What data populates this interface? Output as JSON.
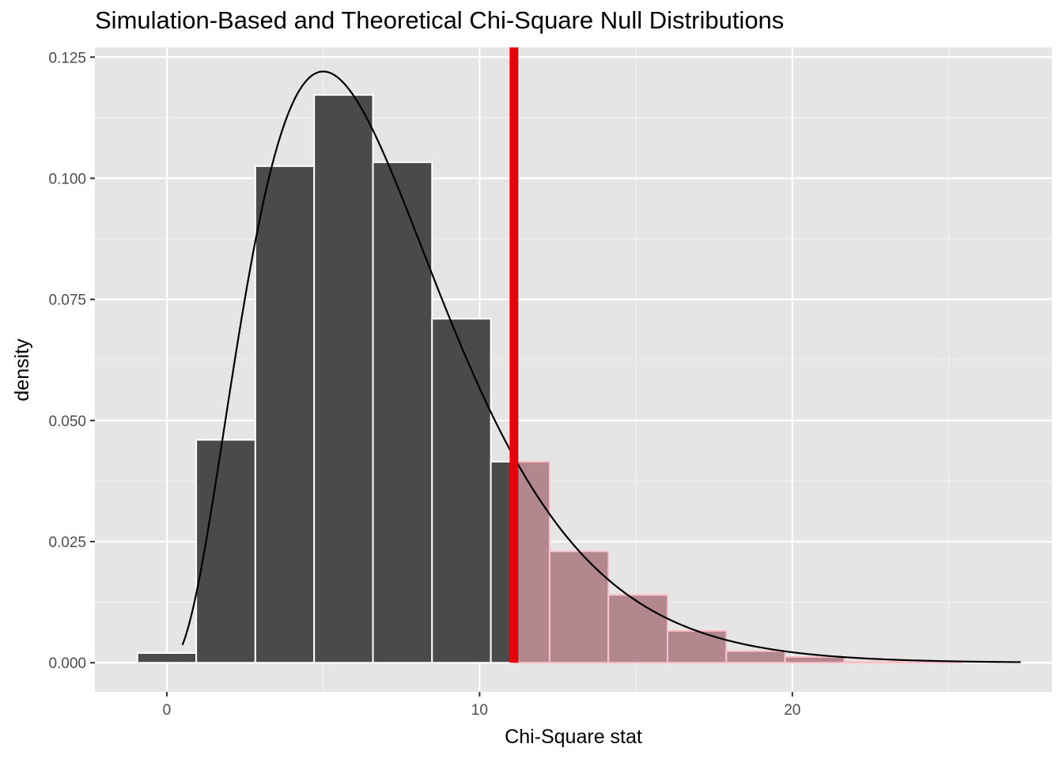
{
  "chart_data": {
    "type": "bar",
    "title": "Simulation-Based and Theoretical Chi-Square Null Distributions",
    "xlabel": "Chi-Square stat",
    "ylabel": "density",
    "xlim": [
      -2.3,
      28.3
    ],
    "ylim": [
      -0.006,
      0.127
    ],
    "x_ticks": [
      {
        "value": 0,
        "label": "0"
      },
      {
        "value": 10,
        "label": "10"
      },
      {
        "value": 20,
        "label": "20"
      }
    ],
    "y_ticks": [
      {
        "value": 0,
        "label": "0.000"
      },
      {
        "value": 0.025,
        "label": "0.025"
      },
      {
        "value": 0.05,
        "label": "0.050"
      },
      {
        "value": 0.075,
        "label": "0.075"
      },
      {
        "value": 0.1,
        "label": "0.100"
      },
      {
        "value": 0.125,
        "label": "0.125"
      }
    ],
    "grid": true,
    "histogram": {
      "name": "simulated",
      "bins": [
        {
          "x0": -0.94,
          "x1": 0.94,
          "density": 0.002
        },
        {
          "x0": 0.94,
          "x1": 2.83,
          "density": 0.046
        },
        {
          "x0": 2.83,
          "x1": 4.71,
          "density": 0.1025
        },
        {
          "x0": 4.71,
          "x1": 6.59,
          "density": 0.1172
        },
        {
          "x0": 6.59,
          "x1": 8.48,
          "density": 0.1033
        },
        {
          "x0": 8.48,
          "x1": 10.36,
          "density": 0.071
        },
        {
          "x0": 10.36,
          "x1": 12.24,
          "density": 0.0415
        },
        {
          "x0": 12.24,
          "x1": 14.12,
          "density": 0.023
        },
        {
          "x0": 14.12,
          "x1": 16.01,
          "density": 0.014
        },
        {
          "x0": 16.01,
          "x1": 17.89,
          "density": 0.0066
        },
        {
          "x0": 17.89,
          "x1": 19.77,
          "density": 0.0024
        },
        {
          "x0": 19.77,
          "x1": 21.66,
          "density": 0.0012
        },
        {
          "x0": 21.66,
          "x1": 23.54,
          "density": 0.0002
        },
        {
          "x0": 23.54,
          "x1": 25.42,
          "density": 0.0001
        }
      ],
      "fill": "#4a4a4a",
      "shaded_fill": "#b3878e",
      "edge": "#ffffff",
      "shaded_edge": "#ffc0cb"
    },
    "theoretical_curve": {
      "name": "theoretical",
      "distribution": "chi-square",
      "df": 7,
      "x_range": [
        0.5,
        27.3
      ],
      "color": "#000000"
    },
    "observed_stat": {
      "value": 11.1,
      "color": "#e3000b"
    }
  }
}
